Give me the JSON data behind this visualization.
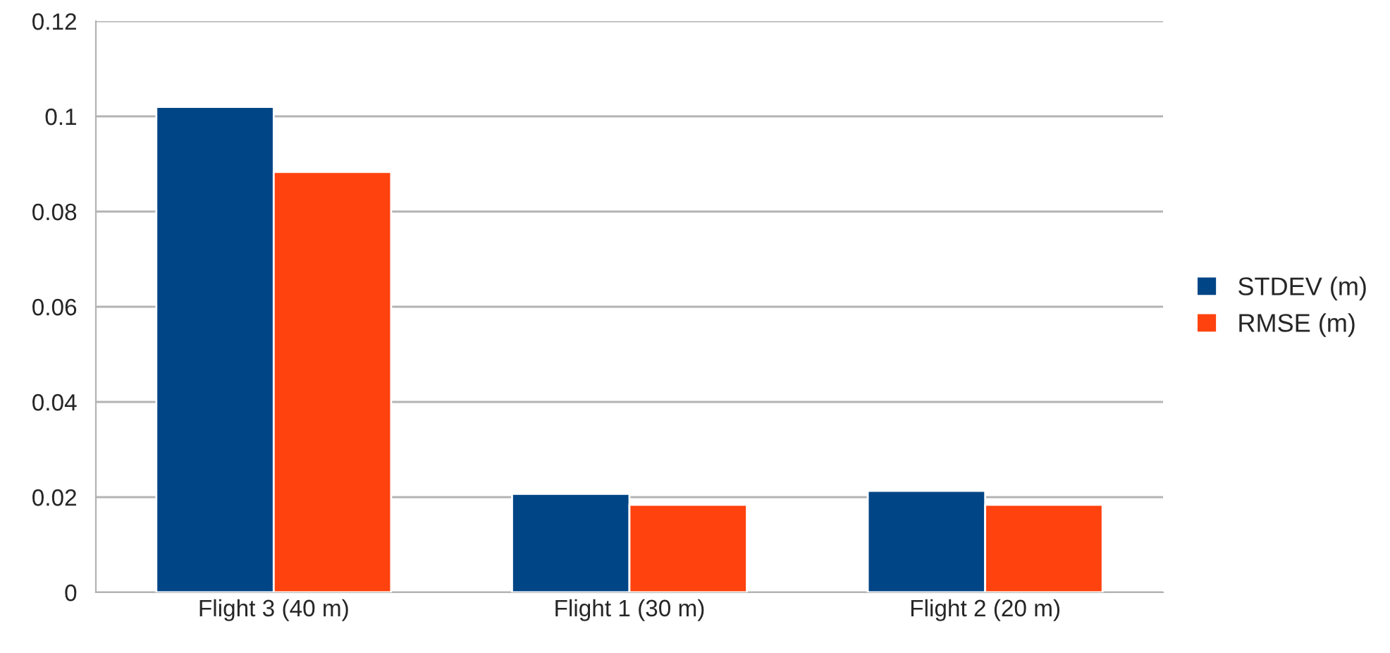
{
  "chart_data": {
    "type": "bar",
    "categories": [
      "Flight 3 (40 m)",
      "Flight 1 (30 m)",
      "Flight 2 (20 m)"
    ],
    "series": [
      {
        "name": "STDEV (m)",
        "color": "#004586",
        "values": [
          0.102,
          0.0207,
          0.0213
        ]
      },
      {
        "name": "RMSE (m)",
        "color": "#ff420e",
        "values": [
          0.0883,
          0.0184,
          0.0184
        ]
      }
    ],
    "ylim": [
      0,
      0.12
    ],
    "yticks": [
      0,
      0.02,
      0.04,
      0.06,
      0.08,
      0.1,
      0.12
    ],
    "grid": "y",
    "legend": "right"
  }
}
